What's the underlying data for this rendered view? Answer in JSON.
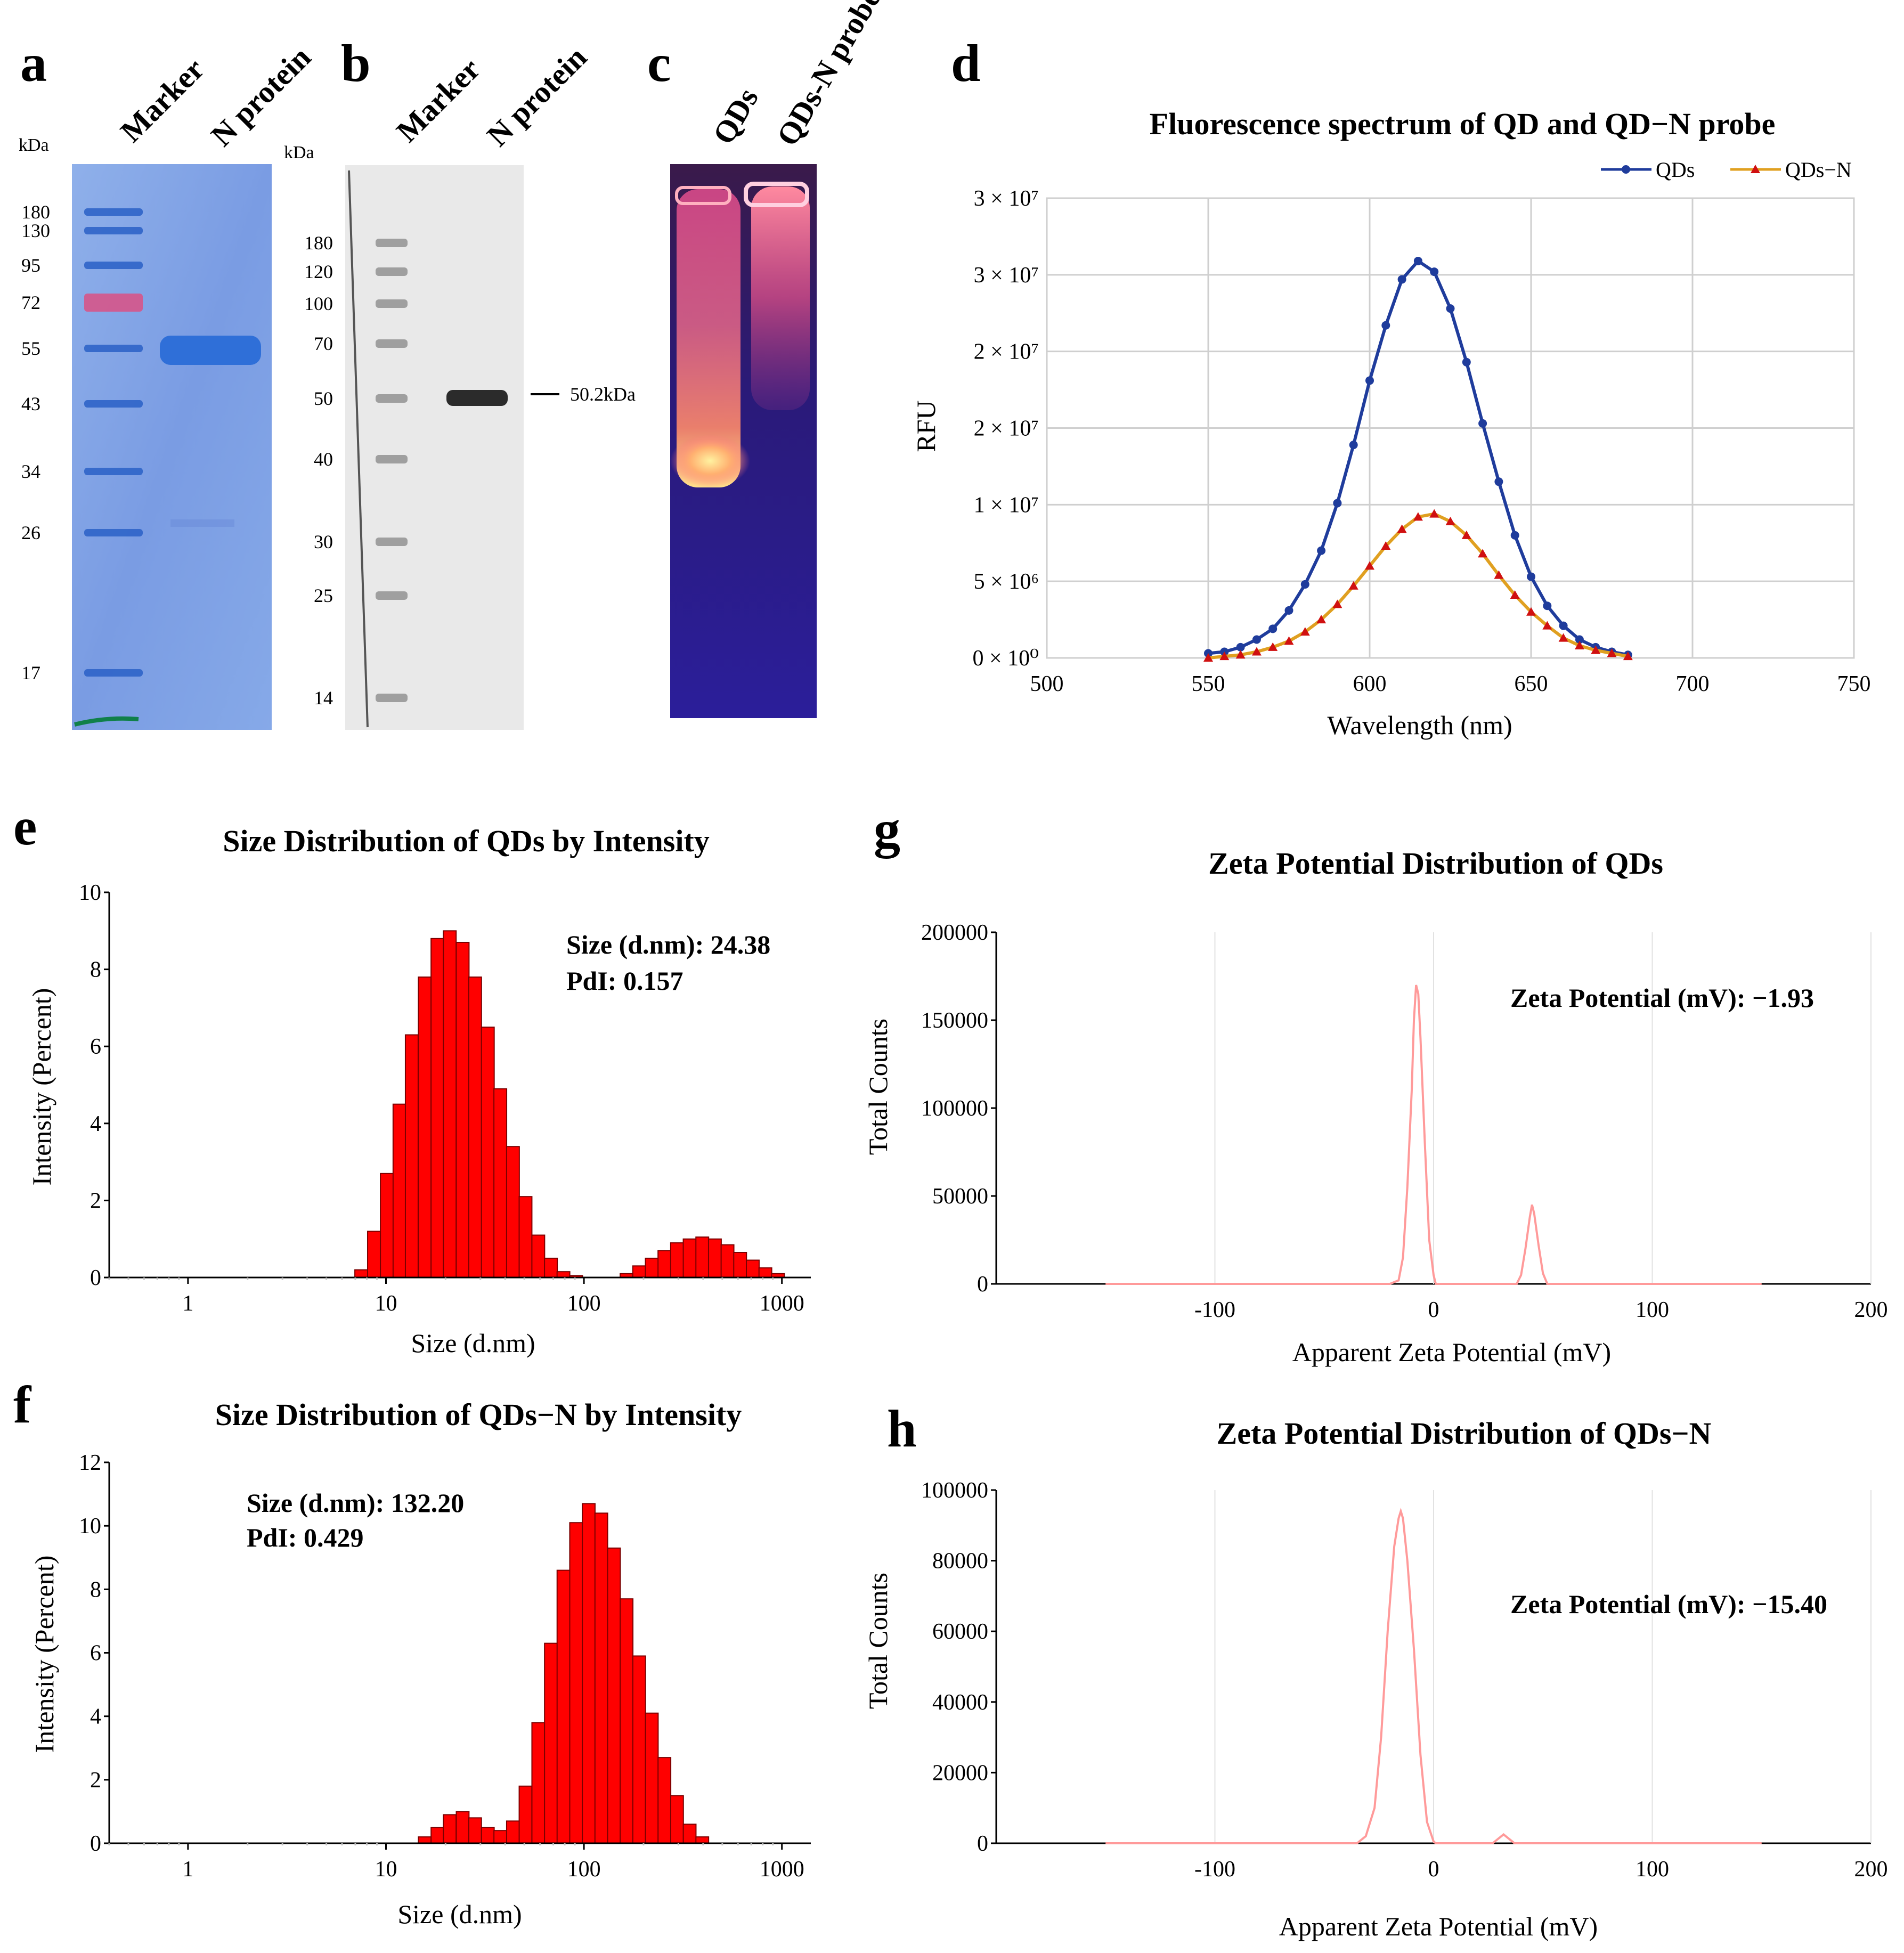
{
  "figure": {
    "panel_labels": [
      "a",
      "b",
      "c",
      "d",
      "e",
      "f",
      "g",
      "h"
    ],
    "panel_a": {
      "lanes": [
        "Marker",
        "N protein"
      ],
      "unit": "kDa",
      "markers": [
        "180",
        "130",
        "95",
        "72",
        "55",
        "43",
        "34",
        "26",
        "17"
      ]
    },
    "panel_b": {
      "lanes": [
        "Marker",
        "N protein"
      ],
      "unit": "kDa",
      "markers": [
        "180",
        "120",
        "100",
        "70",
        "50",
        "40",
        "30",
        "25",
        "14"
      ],
      "band_label": "50.2kDa"
    },
    "panel_c": {
      "lanes": [
        "QDs",
        "QDs-N probe"
      ]
    }
  },
  "chart_data": [
    {
      "id": "d",
      "type": "line",
      "title": "Fluorescence spectrum of QD and QD−N probe",
      "xlabel": "Wavelength (nm)",
      "ylabel": "RFU",
      "xlim": [
        500,
        750
      ],
      "ylim": [
        0,
        30000000
      ],
      "x_ticks": [
        "500",
        "550",
        "600",
        "650",
        "700",
        "750"
      ],
      "y_ticks": [
        "0 × 10⁰",
        "5 × 10⁶",
        "1 × 10⁷",
        "2 × 10⁷",
        "2 × 10⁷",
        "3 × 10⁷",
        "3 × 10⁷"
      ],
      "y_tick_values": [
        0,
        5000000,
        10000000,
        15000000,
        20000000,
        25000000,
        30000000
      ],
      "grid": true,
      "legend_position": "top-right",
      "x": [
        550,
        555,
        560,
        565,
        570,
        575,
        580,
        585,
        590,
        595,
        600,
        605,
        610,
        615,
        620,
        625,
        630,
        635,
        640,
        645,
        650,
        655,
        660,
        665,
        670,
        675,
        680
      ],
      "series": [
        {
          "name": "QDs",
          "color": "#1f3c9c",
          "marker": "circle",
          "values": [
            300000,
            400000,
            700000,
            1200000,
            1900000,
            3100000,
            4800000,
            7000000,
            10100000,
            13900000,
            18100000,
            21700000,
            24700000,
            25900000,
            25200000,
            22800000,
            19300000,
            15300000,
            11500000,
            8000000,
            5300000,
            3400000,
            2100000,
            1200000,
            700000,
            400000,
            200000
          ]
        },
        {
          "name": "QDs−N",
          "color": "#e0a020",
          "marker_color": "#d01010",
          "marker": "triangle",
          "values": [
            0,
            100000,
            200000,
            400000,
            700000,
            1100000,
            1700000,
            2500000,
            3500000,
            4700000,
            6000000,
            7300000,
            8400000,
            9200000,
            9400000,
            8900000,
            8000000,
            6800000,
            5400000,
            4100000,
            3000000,
            2100000,
            1300000,
            800000,
            500000,
            300000,
            100000
          ]
        }
      ]
    },
    {
      "id": "e",
      "type": "bar",
      "title": "Size Distribution of QDs by Intensity",
      "xlabel": "Size (d.nm)",
      "ylabel": "Intensity (Percent)",
      "x_scale": "log",
      "xlim": [
        0.4,
        1400
      ],
      "ylim": [
        0,
        10
      ],
      "x_ticks": [
        "1",
        "10",
        "100",
        "1000"
      ],
      "x_tick_values": [
        1,
        10,
        100,
        1000
      ],
      "y_ticks": [
        "0",
        "2",
        "4",
        "6",
        "8",
        "10"
      ],
      "y_tick_values": [
        0,
        2,
        4,
        6,
        8,
        10
      ],
      "color": "#ff0000",
      "annotation": [
        "Size (d.nm): 24.38",
        "PdI: 0.157"
      ],
      "x": [
        7.5,
        8.7,
        10.1,
        11.7,
        13.5,
        15.7,
        18.2,
        21.0,
        24.4,
        28.2,
        32.7,
        37.8,
        43.8,
        50.7,
        58.8,
        68.1,
        78.8,
        91.3,
        105.7,
        122.4,
        141.8,
        164.2,
        190.1,
        220.2,
        255.0,
        295.3,
        342.0,
        396.1,
        458.7,
        531.2,
        615.1,
        712.4,
        825.0,
        955.4
      ],
      "values": [
        0.2,
        1.2,
        2.7,
        4.5,
        6.3,
        7.8,
        8.8,
        9.0,
        8.7,
        7.8,
        6.5,
        4.9,
        3.4,
        2.1,
        1.1,
        0.5,
        0.15,
        0.05,
        0.0,
        0.0,
        0.0,
        0.1,
        0.3,
        0.5,
        0.7,
        0.9,
        1.0,
        1.05,
        1.0,
        0.85,
        0.65,
        0.45,
        0.25,
        0.1
      ]
    },
    {
      "id": "f",
      "type": "bar",
      "title": "Size Distribution of QDs−N by Intensity",
      "xlabel": "Size (d.nm)",
      "ylabel": "Intensity (Percent)",
      "x_scale": "log",
      "xlim": [
        0.4,
        1400
      ],
      "ylim": [
        0,
        12
      ],
      "x_ticks": [
        "1",
        "10",
        "100",
        "1000"
      ],
      "x_tick_values": [
        1,
        10,
        100,
        1000
      ],
      "y_ticks": [
        "0",
        "2",
        "4",
        "6",
        "8",
        "10",
        "12"
      ],
      "y_tick_values": [
        0,
        2,
        4,
        6,
        8,
        10,
        12
      ],
      "color": "#ff0000",
      "annotation": [
        "Size (d.nm): 132.20",
        "PdI: 0.429"
      ],
      "x": [
        15.7,
        18.2,
        21.0,
        24.4,
        28.2,
        32.7,
        37.8,
        43.8,
        50.7,
        58.8,
        68.1,
        78.8,
        91.3,
        105.7,
        122.4,
        141.8,
        164.2,
        190.1,
        220.2,
        255.0,
        295.3,
        342.0,
        396.1
      ],
      "values": [
        0.2,
        0.5,
        0.9,
        1.0,
        0.8,
        0.5,
        0.4,
        0.7,
        1.8,
        3.8,
        6.3,
        8.6,
        10.1,
        10.7,
        10.4,
        9.3,
        7.7,
        5.9,
        4.1,
        2.7,
        1.5,
        0.6,
        0.2
      ]
    },
    {
      "id": "g",
      "type": "line",
      "title": "Zeta Potential Distribution of QDs",
      "xlabel": "Apparent Zeta Potential (mV)",
      "ylabel": "Total Counts",
      "xlim": [
        -200,
        200
      ],
      "ylim": [
        0,
        200000
      ],
      "x_ticks": [
        "-100",
        "0",
        "100",
        "200"
      ],
      "x_tick_values": [
        -100,
        0,
        100,
        200
      ],
      "y_ticks": [
        "0",
        "50000",
        "100000",
        "150000",
        "200000"
      ],
      "y_tick_values": [
        0,
        50000,
        100000,
        150000,
        200000
      ],
      "color": "#ff9a9a",
      "annotation": "Zeta Potential (mV): −1.93",
      "x": [
        -150,
        -20,
        -16,
        -14,
        -12,
        -10,
        -9,
        -8,
        -7,
        -6,
        -4,
        -2,
        0,
        1,
        3,
        38,
        40,
        42,
        44,
        45,
        46,
        48,
        50,
        52,
        150
      ],
      "values": [
        0,
        0,
        2000,
        15000,
        55000,
        110000,
        150000,
        170000,
        165000,
        140000,
        80000,
        25000,
        5000,
        0,
        0,
        0,
        5000,
        20000,
        38000,
        45000,
        40000,
        22000,
        6000,
        0,
        0
      ]
    },
    {
      "id": "h",
      "type": "line",
      "title": "Zeta Potential Distribution of QDs−N",
      "xlabel": "Apparent Zeta Potential (mV)",
      "ylabel": "Total Counts",
      "xlim": [
        -200,
        200
      ],
      "ylim": [
        0,
        100000
      ],
      "x_ticks": [
        "-100",
        "0",
        "100",
        "200"
      ],
      "x_tick_values": [
        -100,
        0,
        100,
        200
      ],
      "y_ticks": [
        "0",
        "20000",
        "40000",
        "60000",
        "80000",
        "100000"
      ],
      "y_tick_values": [
        0,
        20000,
        40000,
        60000,
        80000,
        100000
      ],
      "color": "#ff9a9a",
      "annotation": "Zeta Potential (mV): −15.40",
      "x": [
        -150,
        -35,
        -31,
        -27,
        -24,
        -21,
        -18,
        -16,
        -15,
        -14,
        -12,
        -9,
        -6,
        -3,
        0,
        1,
        27,
        30,
        32,
        34,
        37,
        150
      ],
      "values": [
        0,
        0,
        2000,
        10000,
        30000,
        60000,
        84000,
        92000,
        94000,
        92000,
        80000,
        55000,
        25000,
        6000,
        500,
        0,
        0,
        1500,
        2500,
        1500,
        0,
        0
      ]
    }
  ]
}
